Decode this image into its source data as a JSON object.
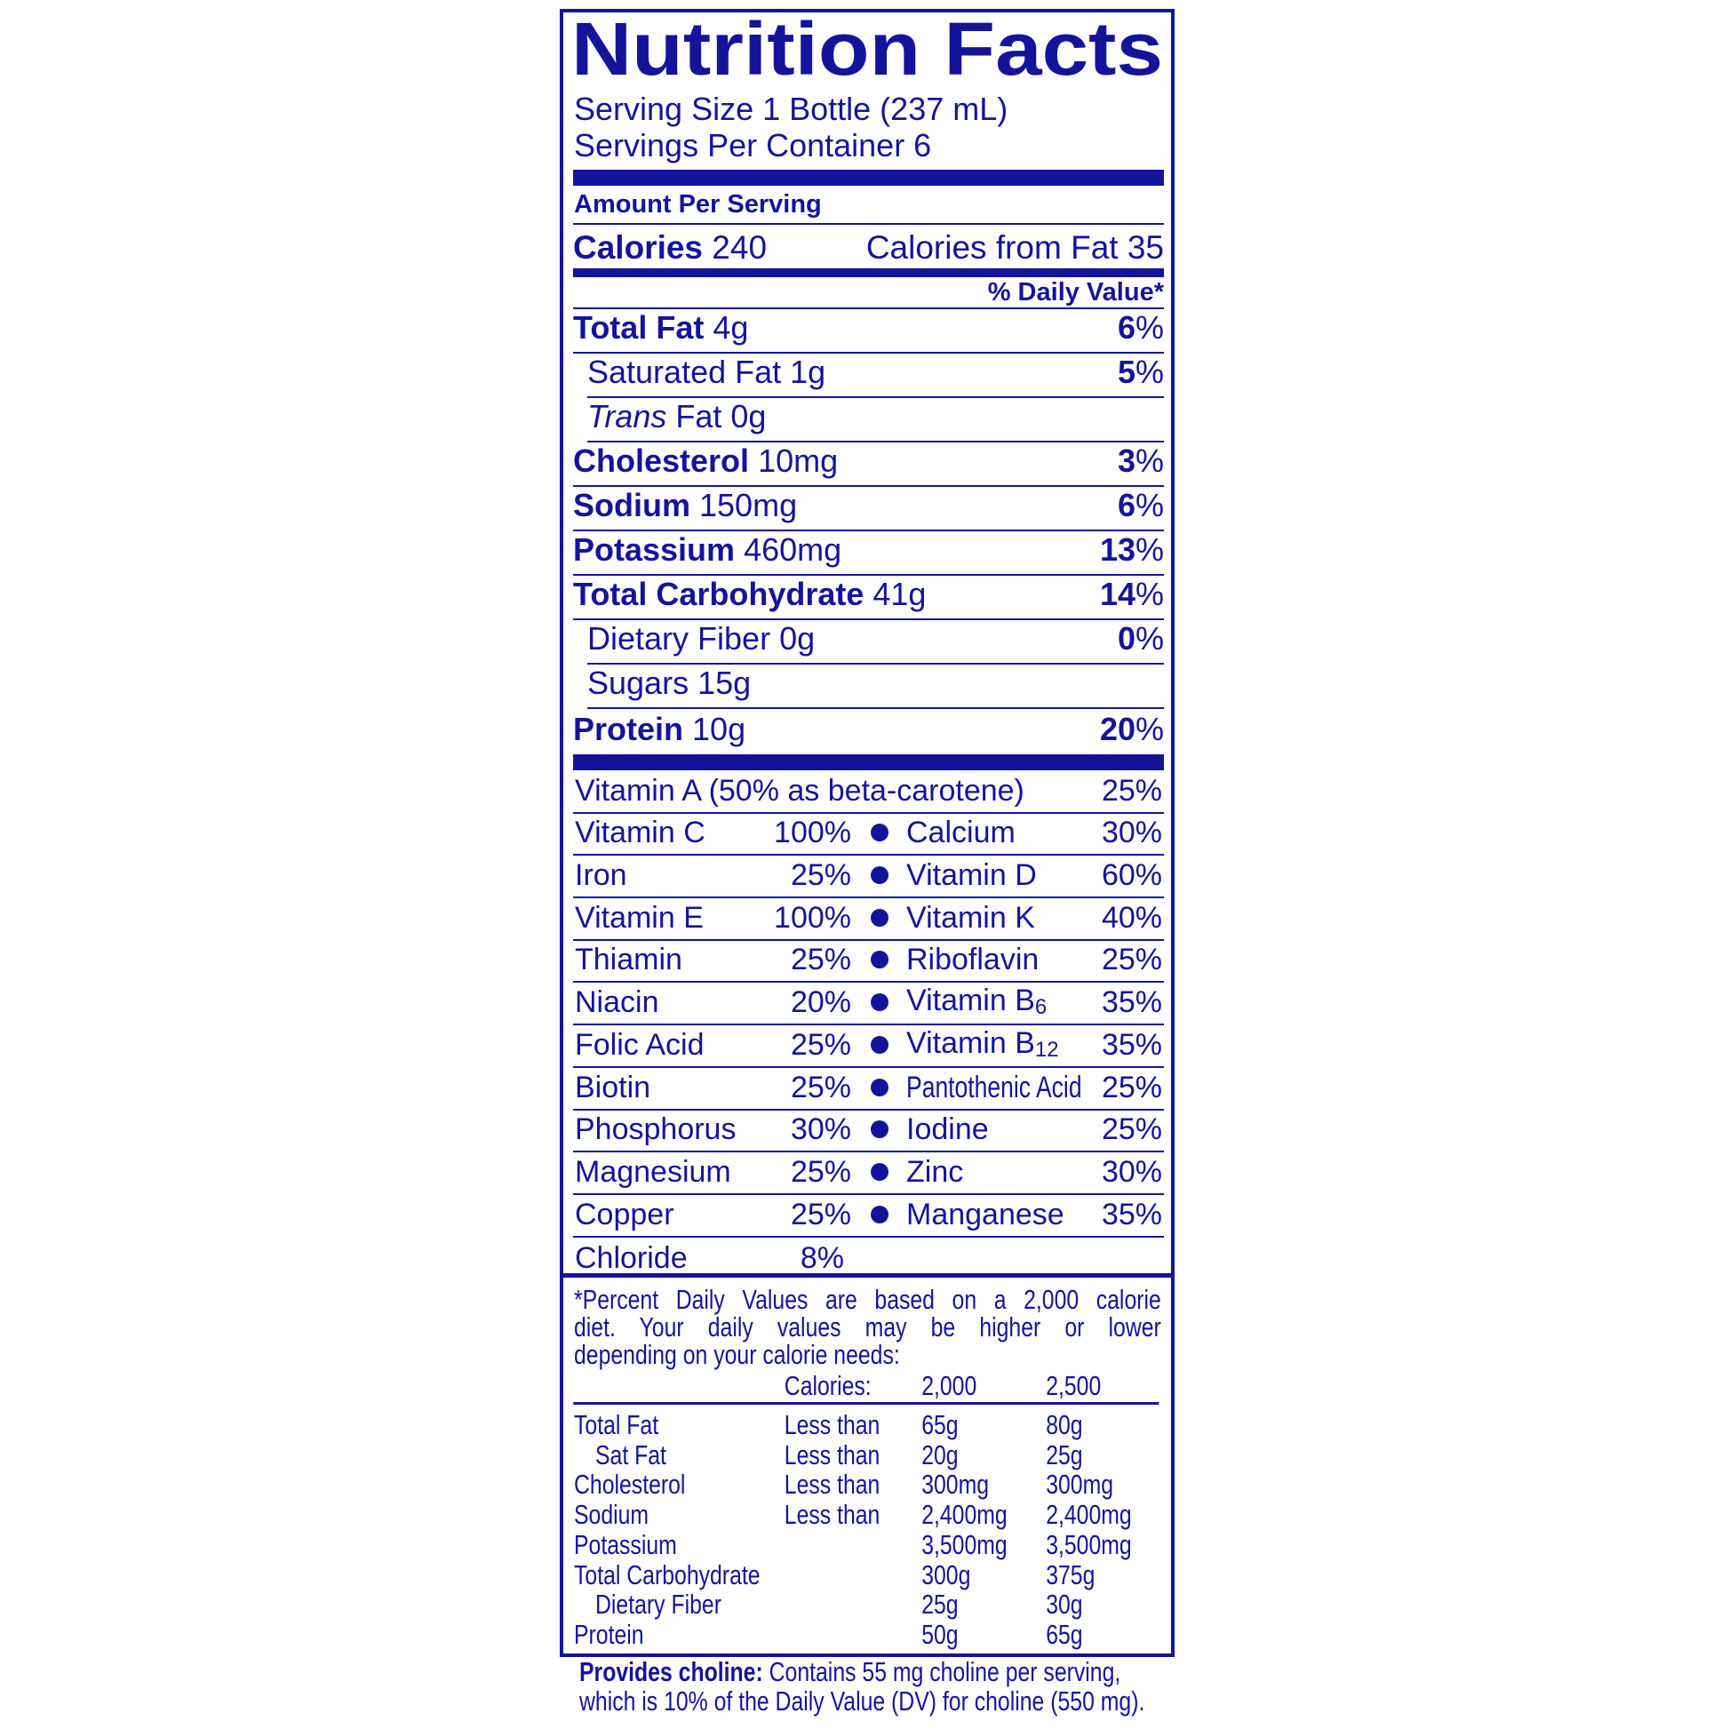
{
  "colors": {
    "label_blue": "#14149b",
    "background": "#ffffff"
  },
  "title": "Nutrition Facts",
  "serving_size": "Serving Size 1 Bottle (237 mL)",
  "servings_per_container": "Servings Per Container 6",
  "amount_per_serving": "Amount Per Serving",
  "calories": {
    "label": "Calories",
    "value": "240",
    "from_fat": "Calories from Fat 35"
  },
  "daily_value_header": "% Daily Value*",
  "nutrients": [
    {
      "name": "Total Fat",
      "amount": "4g",
      "dv": "6",
      "bold": true,
      "indent": false
    },
    {
      "name": "Saturated Fat",
      "amount": "1g",
      "dv": "5",
      "bold": false,
      "indent": true
    },
    {
      "name": "Trans",
      "name_suffix": "Fat",
      "amount": "0g",
      "dv": "",
      "bold": false,
      "indent": true,
      "italic": true
    },
    {
      "name": "Cholesterol",
      "amount": "10mg",
      "dv": "3",
      "bold": true,
      "indent": false
    },
    {
      "name": "Sodium",
      "amount": "150mg",
      "dv": "6",
      "bold": true,
      "indent": false
    },
    {
      "name": "Potassium",
      "amount": "460mg",
      "dv": "13",
      "bold": true,
      "indent": false
    },
    {
      "name": "Total Carbohydrate",
      "amount": "41g",
      "dv": "14",
      "bold": true,
      "indent": false
    },
    {
      "name": "Dietary Fiber",
      "amount": "0g",
      "dv": "0",
      "bold": false,
      "indent": true
    },
    {
      "name": "Sugars",
      "amount": "15g",
      "dv": "",
      "bold": false,
      "indent": true
    },
    {
      "name": "Protein",
      "amount": "10g",
      "dv": "20",
      "bold": true,
      "indent": false
    }
  ],
  "percent_sign": "%",
  "vitamin_a": {
    "name": "Vitamin A (50% as beta-carotene)",
    "dv": "25%"
  },
  "vitamins": [
    {
      "left": {
        "name": "Vitamin C",
        "dv": "100%"
      },
      "right": {
        "name": "Calcium",
        "dv": "30%"
      }
    },
    {
      "left": {
        "name": "Iron",
        "dv": "25%"
      },
      "right": {
        "name": "Vitamin D",
        "dv": "60%"
      }
    },
    {
      "left": {
        "name": "Vitamin E",
        "dv": "100%"
      },
      "right": {
        "name": "Vitamin K",
        "dv": "40%"
      }
    },
    {
      "left": {
        "name": "Thiamin",
        "dv": "25%"
      },
      "right": {
        "name": "Riboflavin",
        "dv": "25%"
      }
    },
    {
      "left": {
        "name": "Niacin",
        "dv": "20%"
      },
      "right": {
        "name": "Vitamin B",
        "sub": "6",
        "dv": "35%"
      }
    },
    {
      "left": {
        "name": "Folic Acid",
        "dv": "25%"
      },
      "right": {
        "name": "Vitamin B",
        "sub": "12",
        "dv": "35%"
      }
    },
    {
      "left": {
        "name": "Biotin",
        "dv": "25%"
      },
      "right": {
        "name": "Pantothenic Acid",
        "dv": "25%",
        "condensed": true
      }
    },
    {
      "left": {
        "name": "Phosphorus",
        "dv": "30%"
      },
      "right": {
        "name": "Iodine",
        "dv": "25%"
      }
    },
    {
      "left": {
        "name": "Magnesium",
        "dv": "25%"
      },
      "right": {
        "name": "Zinc",
        "dv": "30%"
      }
    },
    {
      "left": {
        "name": "Copper",
        "dv": "25%"
      },
      "right": {
        "name": "Manganese",
        "dv": "35%"
      }
    },
    {
      "left": {
        "name": "Chloride",
        "dv": "8%"
      },
      "right": null
    }
  ],
  "footnote": {
    "lines": [
      "*Percent Daily Values are based on a 2,000 calorie",
      "diet. Your daily values may be higher or lower",
      "depending on your calorie needs:"
    ],
    "header": {
      "label": "Calories:",
      "col1": "2,000",
      "col2": "2,500"
    },
    "rows": [
      {
        "name": "Total Fat",
        "qual": "Less than",
        "v1": "65g",
        "v2": "80g",
        "indent": false
      },
      {
        "name": "Sat Fat",
        "qual": "Less than",
        "v1": "20g",
        "v2": "25g",
        "indent": true
      },
      {
        "name": "Cholesterol",
        "qual": "Less than",
        "v1": "300mg",
        "v2": "300mg",
        "indent": false
      },
      {
        "name": "Sodium",
        "qual": "Less than",
        "v1": "2,400mg",
        "v2": "2,400mg",
        "indent": false
      },
      {
        "name": "Potassium",
        "qual": "",
        "v1": "3,500mg",
        "v2": "3,500mg",
        "indent": false
      },
      {
        "name": "Total Carbohydrate",
        "qual": "",
        "v1": "300g",
        "v2": "375g",
        "indent": false
      },
      {
        "name": "Dietary Fiber",
        "qual": "",
        "v1": "25g",
        "v2": "30g",
        "indent": true
      },
      {
        "name": "Protein",
        "qual": "",
        "v1": "50g",
        "v2": "65g",
        "indent": false
      }
    ]
  },
  "choline": {
    "label": "Provides choline:",
    "line1": "Contains 55 mg choline per serving,",
    "line2": "which is 10% of the Daily Value (DV) for choline (550 mg)."
  }
}
